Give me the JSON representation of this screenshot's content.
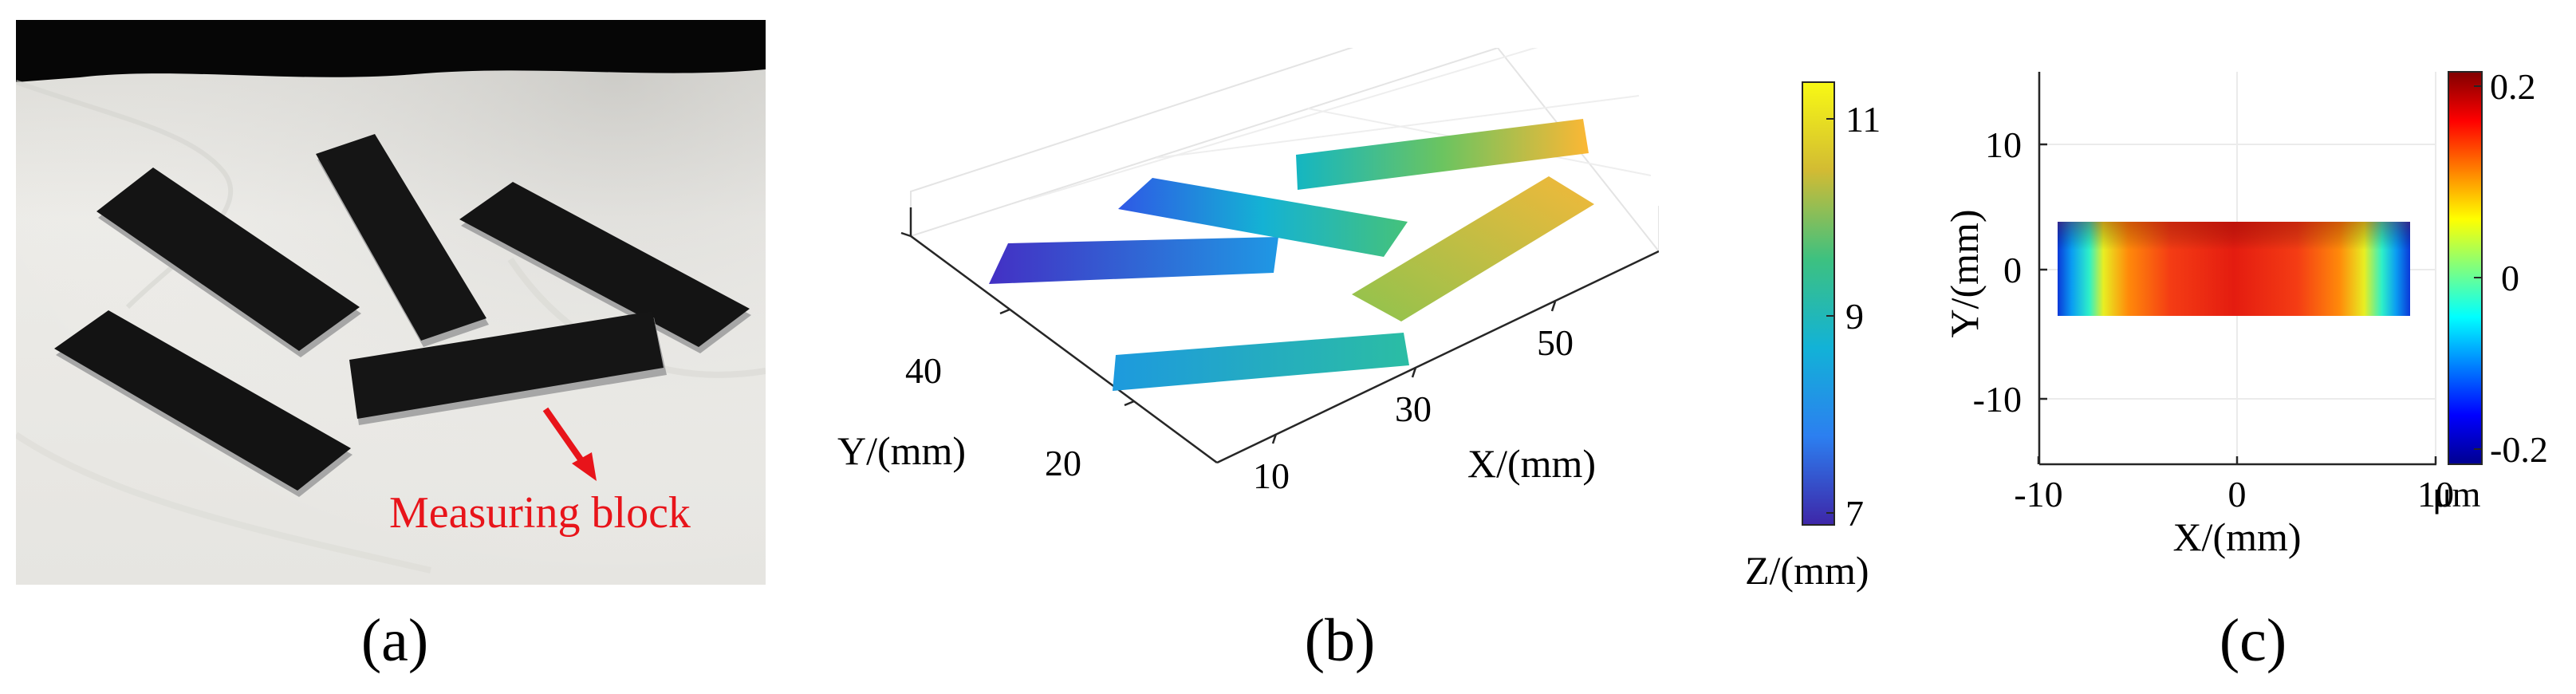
{
  "panel_a": {
    "caption": "(a)",
    "annotation": "Measuring block",
    "annotation_color": "#e8141a",
    "cloth_color": "#e9e8e4",
    "block_color": "#141414"
  },
  "chart_data": [
    {
      "type": "surface3d",
      "caption": "(b)",
      "xlabel": "X/(mm)",
      "ylabel": "Y/(mm)",
      "zlabel": "Z/(mm)",
      "x_ticks": [
        "10",
        "30",
        "50"
      ],
      "y_ticks": [
        "20",
        "40"
      ],
      "colorbar_ticks": [
        "7",
        "9",
        "11"
      ],
      "colorbar_range": [
        7,
        11.5
      ],
      "colormap": "parula",
      "blocks": [
        {
          "z_from": 7.3,
          "z_to": 8.6
        },
        {
          "z_from": 7.9,
          "z_to": 9.4
        },
        {
          "z_from": 8.7,
          "z_to": 9.6
        },
        {
          "z_from": 9.0,
          "z_to": 10.6
        },
        {
          "z_from": 9.8,
          "z_to": 11.4
        }
      ]
    },
    {
      "type": "heatmap",
      "caption": "(c)",
      "xlabel": "X/(mm)",
      "ylabel": "Y/(mm)",
      "x_ticks": [
        "-10",
        "0",
        "10"
      ],
      "y_ticks": [
        "10",
        "0",
        "-10"
      ],
      "xlim": [
        -15,
        15
      ],
      "ylim": [
        -15,
        15
      ],
      "colorbar_ticks": [
        "0.2",
        "0",
        "-0.2"
      ],
      "colorbar_unit": "μm",
      "colorbar_range": [
        -0.22,
        0.22
      ],
      "colormap": "jet"
    }
  ]
}
